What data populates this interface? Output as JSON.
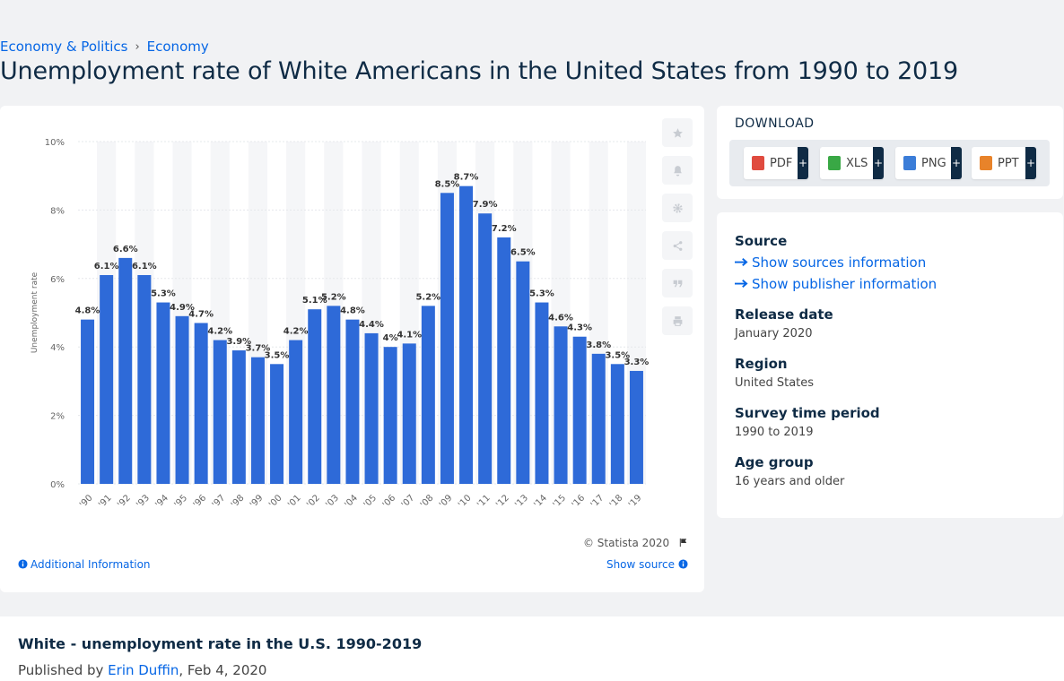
{
  "breadcrumb": {
    "item1": "Economy & Politics",
    "separator": "›",
    "item2": "Economy"
  },
  "page_title": "Unemployment rate of White Americans in the United States from 1990 to 2019",
  "tools": [
    "star-icon",
    "bell-icon",
    "gear-icon",
    "share-icon",
    "quote-icon",
    "print-icon"
  ],
  "credit": "© Statista 2020",
  "additional_info": "Additional Information",
  "show_source": "Show source",
  "download": {
    "title": "DOWNLOAD",
    "buttons": [
      {
        "label": "PDF",
        "plus": "+",
        "color": "#e04b3f"
      },
      {
        "label": "XLS",
        "plus": "+",
        "color": "#39a845"
      },
      {
        "label": "PNG",
        "plus": "+",
        "color": "#3b7dd8"
      },
      {
        "label": "PPT",
        "plus": "+",
        "color": "#e8832a"
      }
    ]
  },
  "details": {
    "source_label": "Source",
    "sources_link": "Show sources information",
    "publisher_link": "Show publisher information",
    "release_label": "Release date",
    "release_value": "January 2020",
    "region_label": "Region",
    "region_value": "United States",
    "period_label": "Survey time period",
    "period_value": "1990 to 2019",
    "age_label": "Age group",
    "age_value": "16 years and older"
  },
  "bottom": {
    "title": "White - unemployment rate in the U.S. 1990-2019",
    "published_prefix": "Published by",
    "author": "Erin Duffin",
    "date": ", Feb 4, 2020"
  },
  "colors": {
    "bar": "#2e6ad8",
    "accent": "#0666e5",
    "text": "#0f2b45"
  },
  "chart_data": {
    "type": "bar",
    "categories": [
      "'90",
      "'91",
      "'92",
      "'93",
      "'94",
      "'95",
      "'96",
      "'97",
      "'98",
      "'99",
      "'00",
      "'01",
      "'02",
      "'03",
      "'04",
      "'05",
      "'06",
      "'07",
      "'08",
      "'09",
      "'10",
      "'11",
      "'12",
      "'13",
      "'14",
      "'15",
      "'16",
      "'17",
      "'18",
      "'19"
    ],
    "values": [
      4.8,
      6.1,
      6.6,
      6.1,
      5.3,
      4.9,
      4.7,
      4.2,
      3.9,
      3.7,
      3.5,
      4.2,
      5.1,
      5.2,
      4.8,
      4.4,
      4,
      4.1,
      5.2,
      8.5,
      8.7,
      7.9,
      7.2,
      6.5,
      5.3,
      4.6,
      4.3,
      3.8,
      3.5,
      3.3
    ],
    "value_labels": [
      "4.8%",
      "6.1%",
      "6.6%",
      "6.1%",
      "5.3%",
      "4.9%",
      "4.7%",
      "4.2%",
      "3.9%",
      "3.7%",
      "3.5%",
      "4.2%",
      "5.1%",
      "5.2%",
      "4.8%",
      "4.4%",
      "4%",
      "4.1%",
      "5.2%",
      "8.5%",
      "8.7%",
      "7.9%",
      "7.2%",
      "6.5%",
      "5.3%",
      "4.6%",
      "4.3%",
      "3.8%",
      "3.5%",
      "3.3%"
    ],
    "ylabel": "Unemployment rate",
    "yticks": [
      "0%",
      "2%",
      "4%",
      "6%",
      "8%",
      "10%"
    ],
    "ylim": [
      0,
      10
    ],
    "grid": true
  }
}
